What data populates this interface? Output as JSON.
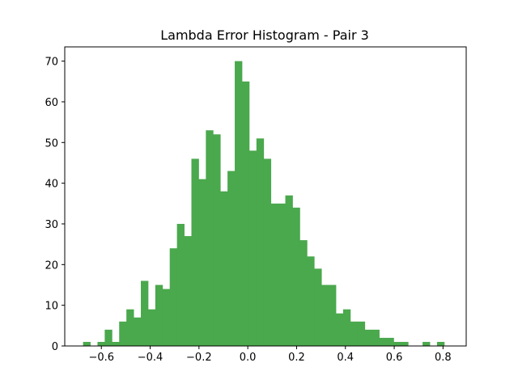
{
  "chart_data": {
    "type": "bar",
    "title": "Lambda Error Histogram - Pair 3",
    "xlabel": "",
    "ylabel": "",
    "bar_color": "#4aa84d",
    "bin_width": 0.0296,
    "bin_start": -0.675,
    "counts": [
      1,
      0,
      1,
      4,
      1,
      6,
      9,
      7,
      16,
      9,
      15,
      14,
      24,
      30,
      27,
      46,
      41,
      53,
      52,
      38,
      43,
      70,
      65,
      48,
      51,
      46,
      35,
      35,
      37,
      34,
      26,
      22,
      19,
      15,
      15,
      8,
      9,
      6,
      6,
      4,
      4,
      2,
      2,
      1,
      1,
      0,
      0,
      1,
      0,
      1
    ],
    "xlim": [
      -0.75,
      0.895
    ],
    "ylim": [
      0,
      73.5
    ],
    "x_ticks": [
      -0.6,
      -0.4,
      -0.2,
      0.0,
      0.2,
      0.4,
      0.6,
      0.8
    ],
    "x_tick_labels": [
      "−0.6",
      "−0.4",
      "−0.2",
      "0.0",
      "0.2",
      "0.4",
      "0.6",
      "0.8"
    ],
    "y_ticks": [
      0,
      10,
      20,
      30,
      40,
      50,
      60,
      70
    ],
    "y_tick_labels": [
      "0",
      "10",
      "20",
      "30",
      "40",
      "50",
      "60",
      "70"
    ],
    "grid": false,
    "legend": "none"
  }
}
